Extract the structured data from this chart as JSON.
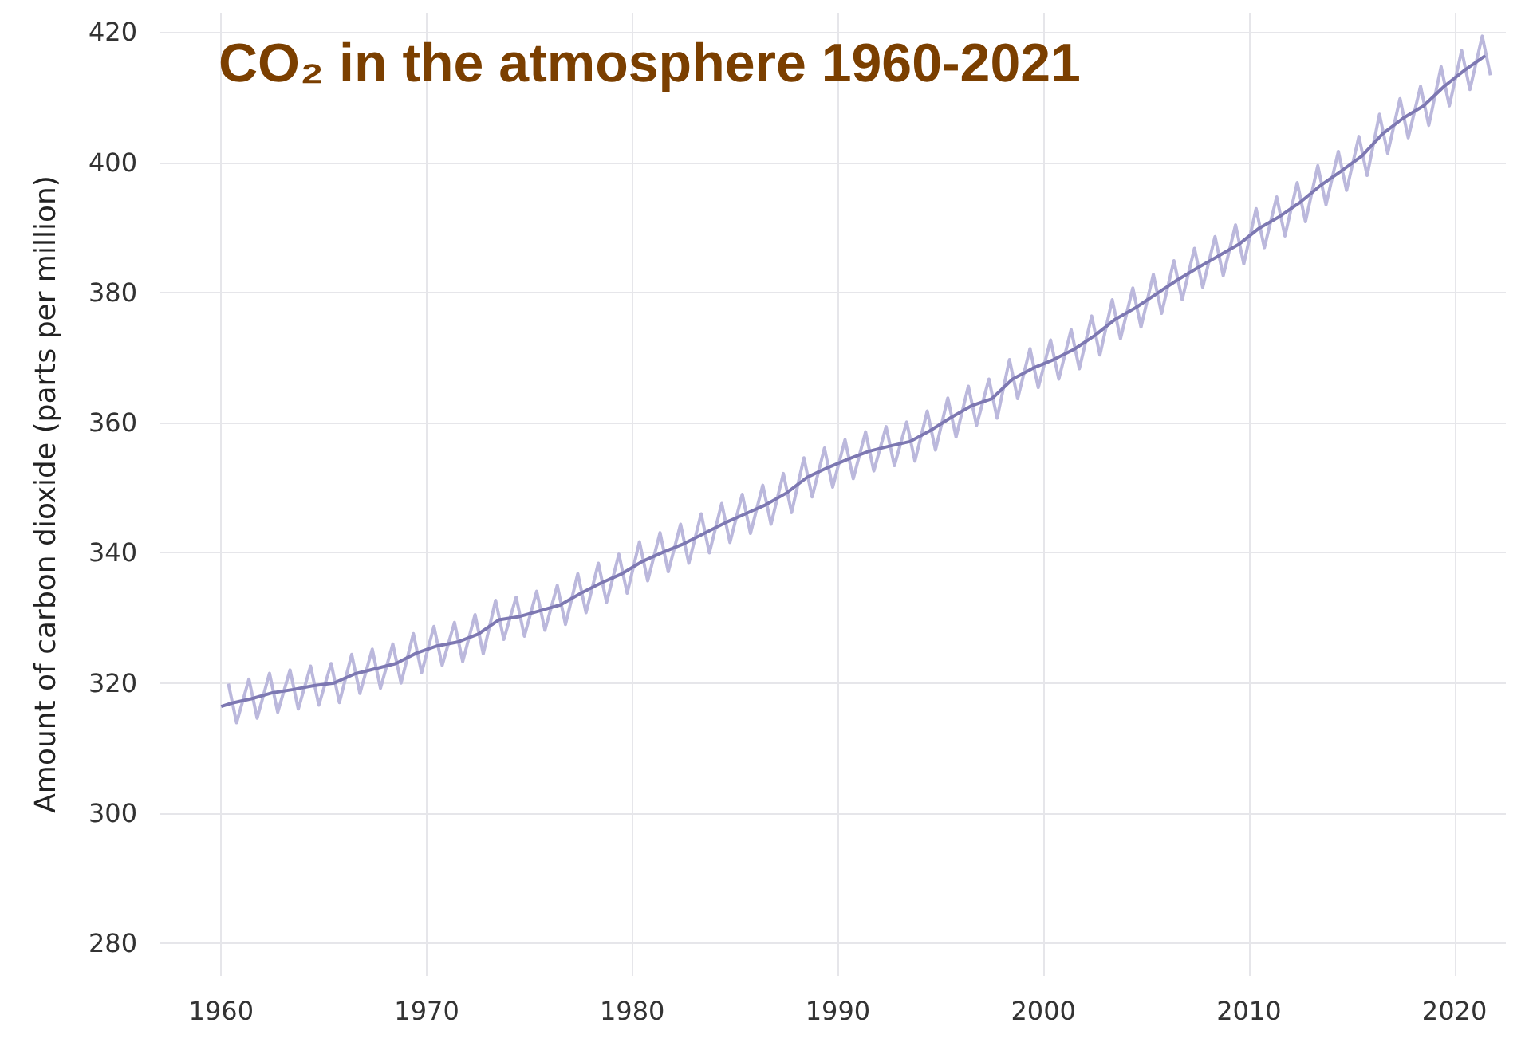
{
  "chart_data": {
    "type": "line",
    "title": "CO₂ in the atmosphere 1960-2021",
    "ylabel": "Amount of carbon dioxide (parts per million)",
    "xlim": [
      1957,
      2022.5
    ],
    "xticks": [
      1960,
      1970,
      1980,
      1990,
      2000,
      2010,
      2020
    ],
    "ylim": [
      275,
      423
    ],
    "yticks": [
      280,
      300,
      320,
      340,
      360,
      380,
      400,
      420
    ],
    "grid": true,
    "marker": "none",
    "line_style": "solid",
    "series": [
      {
        "color": "#bbb8dc",
        "x": [
          1960.35,
          1960.75,
          1961.35,
          1961.75,
          1962.35,
          1962.75,
          1963.35,
          1963.75,
          1964.35,
          1964.75,
          1965.35,
          1965.75,
          1966.35,
          1966.75,
          1967.35,
          1967.75,
          1968.35,
          1968.75,
          1969.35,
          1969.75,
          1970.35,
          1970.75,
          1971.35,
          1971.75,
          1972.35,
          1972.75,
          1973.35,
          1973.75,
          1974.35,
          1974.75,
          1975.35,
          1975.75,
          1976.35,
          1976.75,
          1977.35,
          1977.75,
          1978.35,
          1978.75,
          1979.35,
          1979.75,
          1980.35,
          1980.75,
          1981.35,
          1981.75,
          1982.35,
          1982.75,
          1983.35,
          1983.75,
          1984.35,
          1984.75,
          1985.35,
          1985.75,
          1986.35,
          1986.75,
          1987.35,
          1987.75,
          1988.35,
          1988.75,
          1989.35,
          1989.75,
          1990.35,
          1990.75,
          1991.35,
          1991.75,
          1992.35,
          1992.75,
          1993.35,
          1993.75,
          1994.35,
          1994.75,
          1995.35,
          1995.75,
          1996.35,
          1996.75,
          1997.35,
          1997.75,
          1998.35,
          1998.75,
          1999.35,
          1999.75,
          2000.35,
          2000.75,
          2001.35,
          2001.75,
          2002.35,
          2002.75,
          2003.35,
          2003.75,
          2004.35,
          2004.75,
          2005.35,
          2005.75,
          2006.35,
          2006.75,
          2007.35,
          2007.75,
          2008.35,
          2008.75,
          2009.35,
          2009.75,
          2010.35,
          2010.75,
          2011.35,
          2011.75,
          2012.35,
          2012.75,
          2013.35,
          2013.75,
          2014.35,
          2014.75,
          2015.35,
          2015.75,
          2016.35,
          2016.75,
          2017.35,
          2017.75,
          2018.35,
          2018.75,
          2019.35,
          2019.75,
          2020.35,
          2020.75,
          2021.35,
          2021.75
        ],
        "values": [
          319.9,
          313.9,
          320.6,
          314.6,
          321.5,
          315.5,
          322.0,
          316.0,
          322.6,
          316.6,
          323.0,
          317.0,
          324.4,
          318.4,
          325.2,
          319.2,
          326.0,
          320.0,
          327.6,
          321.6,
          328.7,
          322.7,
          329.3,
          323.3,
          330.5,
          324.5,
          332.7,
          326.7,
          333.2,
          327.2,
          334.1,
          328.1,
          335.0,
          329.0,
          336.8,
          330.8,
          338.4,
          332.4,
          339.8,
          333.8,
          341.7,
          335.7,
          343.1,
          337.1,
          344.4,
          338.4,
          346.0,
          340.0,
          347.6,
          341.6,
          349.0,
          343.0,
          350.4,
          344.4,
          352.2,
          346.2,
          354.6,
          348.6,
          356.1,
          350.1,
          357.4,
          351.4,
          358.6,
          352.6,
          359.4,
          353.4,
          360.1,
          354.1,
          361.8,
          355.8,
          363.8,
          357.8,
          365.6,
          359.6,
          366.7,
          360.7,
          369.7,
          363.7,
          371.4,
          365.4,
          372.7,
          366.7,
          374.3,
          368.3,
          376.4,
          370.4,
          378.9,
          372.9,
          380.7,
          374.7,
          382.8,
          376.8,
          384.9,
          378.9,
          386.8,
          380.8,
          388.6,
          382.6,
          390.4,
          384.4,
          392.9,
          386.9,
          394.7,
          388.7,
          396.9,
          390.9,
          399.5,
          393.5,
          401.7,
          395.7,
          404.0,
          398.0,
          407.4,
          401.4,
          409.8,
          403.8,
          411.7,
          405.7,
          414.7,
          408.7,
          417.2,
          411.2,
          419.4,
          413.4
        ]
      },
      {
        "color": "#7d78b2",
        "x": [
          1960,
          1960.5,
          1961.5,
          1962.5,
          1963.5,
          1964.5,
          1965.5,
          1966.5,
          1967.5,
          1968.5,
          1969.5,
          1970.5,
          1971.5,
          1972.5,
          1973.5,
          1974.5,
          1975.5,
          1976.5,
          1977.5,
          1978.5,
          1979.5,
          1980.5,
          1981.5,
          1982.5,
          1983.5,
          1984.5,
          1985.5,
          1986.5,
          1987.5,
          1988.5,
          1989.5,
          1990.5,
          1991.5,
          1992.5,
          1993.5,
          1994.5,
          1995.5,
          1996.5,
          1997.5,
          1998.5,
          1999.5,
          2000.5,
          2001.5,
          2002.5,
          2003.5,
          2004.5,
          2005.5,
          2006.5,
          2007.5,
          2008.5,
          2009.5,
          2010.5,
          2011.5,
          2012.5,
          2013.5,
          2014.5,
          2015.5,
          2016.5,
          2017.5,
          2018.5,
          2019.5,
          2020.5,
          2021.5
        ],
        "values": [
          316.4,
          316.9,
          317.6,
          318.5,
          319.0,
          319.6,
          320.0,
          321.4,
          322.2,
          323.0,
          324.6,
          325.7,
          326.3,
          327.5,
          329.7,
          330.2,
          331.1,
          332.0,
          333.8,
          335.4,
          336.8,
          338.7,
          340.1,
          341.4,
          343.0,
          344.6,
          346.0,
          347.4,
          349.2,
          351.6,
          353.1,
          354.4,
          355.6,
          356.4,
          357.1,
          358.8,
          360.8,
          362.6,
          363.7,
          366.7,
          368.4,
          369.7,
          371.3,
          373.4,
          375.9,
          377.7,
          379.8,
          381.9,
          383.8,
          385.6,
          387.4,
          389.9,
          391.7,
          393.9,
          396.5,
          398.7,
          401.0,
          404.4,
          406.8,
          408.7,
          411.7,
          414.2,
          416.4
        ]
      }
    ]
  }
}
